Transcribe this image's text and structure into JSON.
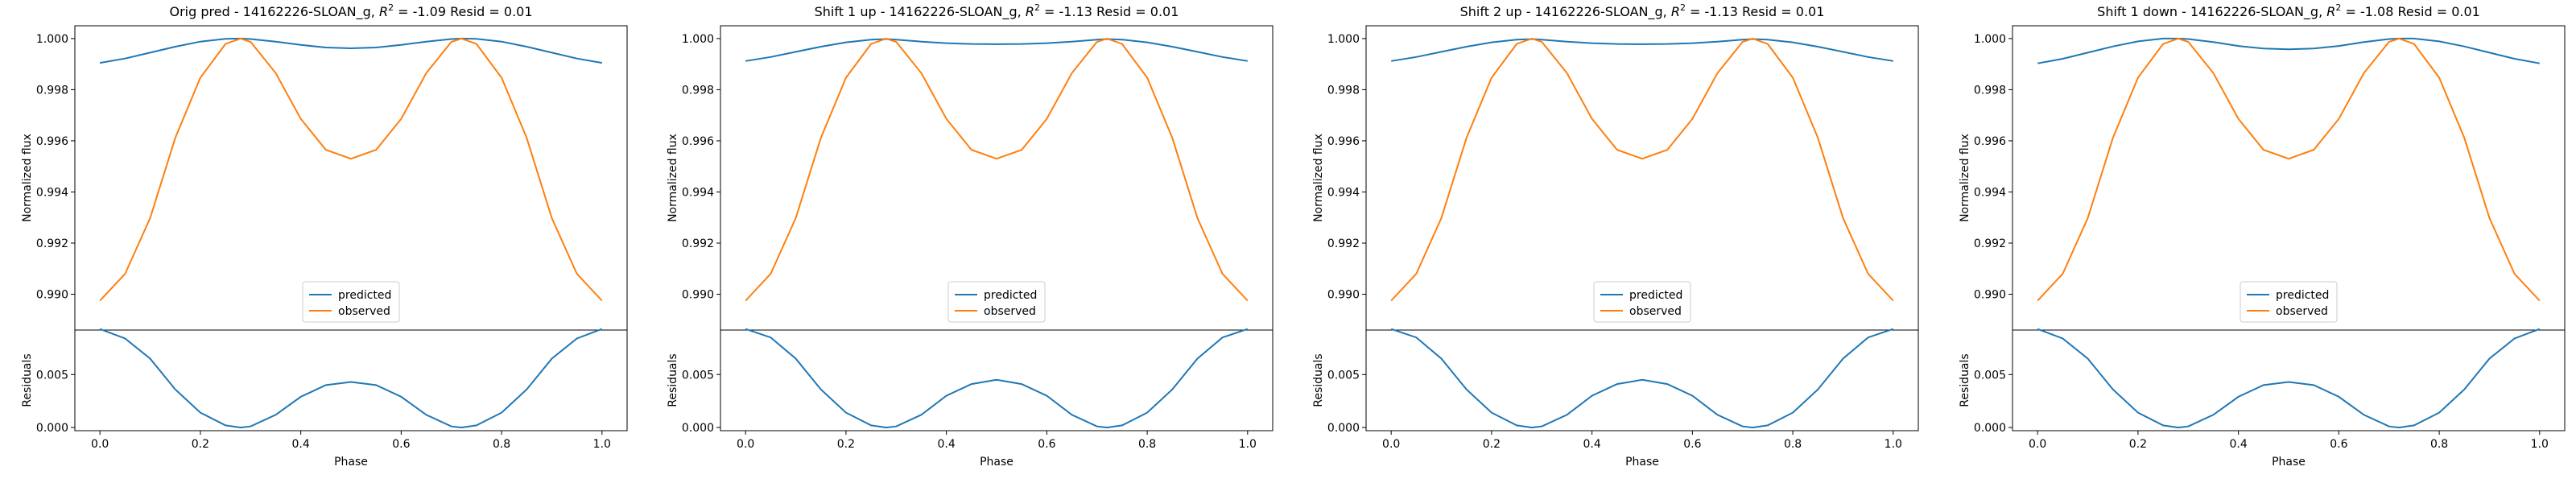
{
  "figure": {
    "x_label": "Phase",
    "flux_label": "Normalized flux",
    "resid_label": "Residuals",
    "legend": [
      "predicted",
      "observed"
    ],
    "colors": {
      "predicted": "#1f77b4",
      "observed": "#ff7f0e"
    }
  },
  "chart_data": [
    {
      "type": "line",
      "title_prefix": "Orig pred - 14162226-SLOAN_g, ",
      "r2_label": "R",
      "r2_sup": "2",
      "title_suffix": " = -1.09 Resid = 0.01",
      "xlabel": "Phase",
      "ylabel": "Normalized flux",
      "ylabel_resid": "Residuals",
      "xlim": [
        -0.05,
        1.05
      ],
      "ylim": [
        0.9886,
        1.0005
      ],
      "ylim_resid": [
        -0.0003,
        0.0092
      ],
      "x_ticks": [
        "0.0",
        "0.2",
        "0.4",
        "0.6",
        "0.8",
        "1.0"
      ],
      "y_ticks": [
        "0.990",
        "0.992",
        "0.994",
        "0.996",
        "0.998",
        "1.000"
      ],
      "resid_ticks": [
        "0.000",
        "0.005"
      ],
      "legend_position": "lower center",
      "x": [
        0,
        0.05,
        0.1,
        0.15,
        0.2,
        0.25,
        0.28,
        0.3,
        0.35,
        0.4,
        0.45,
        0.5,
        0.55,
        0.6,
        0.65,
        0.7,
        0.72,
        0.75,
        0.8,
        0.85,
        0.9,
        0.95,
        1.0
      ],
      "series": [
        {
          "name": "predicted",
          "values": [
            0.99905,
            0.99922,
            0.99945,
            0.99968,
            0.99988,
            0.99999,
            1.0,
            0.99998,
            0.99988,
            0.99975,
            0.99965,
            0.99962,
            0.99965,
            0.99975,
            0.99988,
            0.99998,
            1.0,
            0.99999,
            0.99988,
            0.99968,
            0.99945,
            0.99922,
            0.99905
          ]
        },
        {
          "name": "observed",
          "values": [
            0.98975,
            0.9908,
            0.99298,
            0.99611,
            0.99847,
            0.99979,
            1.0,
            0.99987,
            0.99865,
            0.99686,
            0.99565,
            0.9953,
            0.99565,
            0.99686,
            0.99865,
            0.99987,
            1.0,
            0.99979,
            0.99847,
            0.99611,
            0.99298,
            0.9908,
            0.98975
          ]
        }
      ],
      "residuals": [
        0.0093,
        0.0084,
        0.0065,
        0.0036,
        0.0014,
        0.0002,
        0.0,
        0.0001,
        0.0012,
        0.0029,
        0.004,
        0.0043,
        0.004,
        0.0029,
        0.0012,
        0.0001,
        0.0,
        0.0002,
        0.0014,
        0.0036,
        0.0065,
        0.0084,
        0.0093
      ]
    },
    {
      "type": "line",
      "title_prefix": "Shift 1 up - 14162226-SLOAN_g, ",
      "r2_label": "R",
      "r2_sup": "2",
      "title_suffix": " = -1.13 Resid = 0.01",
      "xlabel": "Phase",
      "ylabel": "Normalized flux",
      "ylabel_resid": "Residuals",
      "xlim": [
        -0.05,
        1.05
      ],
      "ylim": [
        0.9886,
        1.0005
      ],
      "ylim_resid": [
        -0.0003,
        0.0092
      ],
      "x_ticks": [
        "0.0",
        "0.2",
        "0.4",
        "0.6",
        "0.8",
        "1.0"
      ],
      "y_ticks": [
        "0.990",
        "0.992",
        "0.994",
        "0.996",
        "0.998",
        "1.000"
      ],
      "resid_ticks": [
        "0.000",
        "0.005"
      ],
      "legend_position": "lower center",
      "x": [
        0,
        0.05,
        0.1,
        0.15,
        0.2,
        0.25,
        0.28,
        0.3,
        0.35,
        0.4,
        0.45,
        0.5,
        0.55,
        0.6,
        0.65,
        0.7,
        0.72,
        0.75,
        0.8,
        0.85,
        0.9,
        0.95,
        1.0
      ],
      "series": [
        {
          "name": "predicted",
          "values": [
            0.99912,
            0.99928,
            0.99948,
            0.99968,
            0.99985,
            0.99996,
            0.99998,
            0.99996,
            0.99988,
            0.99982,
            0.99979,
            0.99978,
            0.99979,
            0.99982,
            0.99988,
            0.99996,
            0.99998,
            0.99996,
            0.99985,
            0.99968,
            0.99948,
            0.99928,
            0.99912
          ]
        },
        {
          "name": "observed",
          "values": [
            0.98975,
            0.9908,
            0.99298,
            0.99611,
            0.99847,
            0.99979,
            1.0,
            0.99987,
            0.99865,
            0.99686,
            0.99565,
            0.9953,
            0.99565,
            0.99686,
            0.99865,
            0.99987,
            1.0,
            0.99979,
            0.99847,
            0.99611,
            0.99298,
            0.9908,
            0.98975
          ]
        }
      ],
      "residuals": [
        0.0093,
        0.0085,
        0.0065,
        0.0036,
        0.0014,
        0.0002,
        0.0,
        0.0001,
        0.0012,
        0.003,
        0.0041,
        0.0045,
        0.0041,
        0.003,
        0.0012,
        0.0001,
        0.0,
        0.0002,
        0.0014,
        0.0036,
        0.0065,
        0.0085,
        0.0093
      ]
    },
    {
      "type": "line",
      "title_prefix": "Shift 2 up - 14162226-SLOAN_g, ",
      "r2_label": "R",
      "r2_sup": "2",
      "title_suffix": " = -1.13 Resid = 0.01",
      "xlabel": "Phase",
      "ylabel": "Normalized flux",
      "ylabel_resid": "Residuals",
      "xlim": [
        -0.05,
        1.05
      ],
      "ylim": [
        0.9886,
        1.0005
      ],
      "ylim_resid": [
        -0.0003,
        0.0092
      ],
      "x_ticks": [
        "0.0",
        "0.2",
        "0.4",
        "0.6",
        "0.8",
        "1.0"
      ],
      "y_ticks": [
        "0.990",
        "0.992",
        "0.994",
        "0.996",
        "0.998",
        "1.000"
      ],
      "resid_ticks": [
        "0.000",
        "0.005"
      ],
      "legend_position": "lower center",
      "x": [
        0,
        0.05,
        0.1,
        0.15,
        0.2,
        0.25,
        0.28,
        0.3,
        0.35,
        0.4,
        0.45,
        0.5,
        0.55,
        0.6,
        0.65,
        0.7,
        0.72,
        0.75,
        0.8,
        0.85,
        0.9,
        0.95,
        1.0
      ],
      "series": [
        {
          "name": "predicted",
          "values": [
            0.99912,
            0.99928,
            0.99948,
            0.99968,
            0.99985,
            0.99996,
            0.99998,
            0.99996,
            0.99988,
            0.99982,
            0.99979,
            0.99978,
            0.99979,
            0.99982,
            0.99988,
            0.99996,
            0.99998,
            0.99996,
            0.99985,
            0.99968,
            0.99948,
            0.99928,
            0.99912
          ]
        },
        {
          "name": "observed",
          "values": [
            0.98975,
            0.9908,
            0.99298,
            0.99611,
            0.99847,
            0.99979,
            1.0,
            0.99987,
            0.99865,
            0.99686,
            0.99565,
            0.9953,
            0.99565,
            0.99686,
            0.99865,
            0.99987,
            1.0,
            0.99979,
            0.99847,
            0.99611,
            0.99298,
            0.9908,
            0.98975
          ]
        }
      ],
      "residuals": [
        0.0093,
        0.0085,
        0.0065,
        0.0036,
        0.0014,
        0.0002,
        0.0,
        0.0001,
        0.0012,
        0.003,
        0.0041,
        0.0045,
        0.0041,
        0.003,
        0.0012,
        0.0001,
        0.0,
        0.0002,
        0.0014,
        0.0036,
        0.0065,
        0.0085,
        0.0093
      ]
    },
    {
      "type": "line",
      "title_prefix": "Shift 1 down - 14162226-SLOAN_g, ",
      "r2_label": "R",
      "r2_sup": "2",
      "title_suffix": " = -1.08 Resid = 0.01",
      "xlabel": "Phase",
      "ylabel": "Normalized flux",
      "ylabel_resid": "Residuals",
      "xlim": [
        -0.05,
        1.05
      ],
      "ylim": [
        0.9886,
        1.0005
      ],
      "ylim_resid": [
        -0.0003,
        0.0092
      ],
      "x_ticks": [
        "0.0",
        "0.2",
        "0.4",
        "0.6",
        "0.8",
        "1.0"
      ],
      "y_ticks": [
        "0.990",
        "0.992",
        "0.994",
        "0.996",
        "0.998",
        "1.000"
      ],
      "resid_ticks": [
        "0.000",
        "0.005"
      ],
      "legend_position": "lower center",
      "x": [
        0,
        0.05,
        0.1,
        0.15,
        0.2,
        0.25,
        0.28,
        0.3,
        0.35,
        0.4,
        0.45,
        0.5,
        0.55,
        0.6,
        0.65,
        0.7,
        0.72,
        0.75,
        0.8,
        0.85,
        0.9,
        0.95,
        1.0
      ],
      "series": [
        {
          "name": "predicted",
          "values": [
            0.99903,
            0.99921,
            0.99945,
            0.99969,
            0.99989,
            1.0,
            1.0,
            0.99998,
            0.99986,
            0.99971,
            0.99961,
            0.99958,
            0.99961,
            0.99971,
            0.99986,
            0.99998,
            1.0,
            1.0,
            0.99989,
            0.99969,
            0.99945,
            0.99921,
            0.99903
          ]
        },
        {
          "name": "observed",
          "values": [
            0.98975,
            0.9908,
            0.99298,
            0.99611,
            0.99847,
            0.99979,
            1.0,
            0.99987,
            0.99865,
            0.99686,
            0.99565,
            0.9953,
            0.99565,
            0.99686,
            0.99865,
            0.99987,
            1.0,
            0.99979,
            0.99847,
            0.99611,
            0.99298,
            0.9908,
            0.98975
          ]
        }
      ],
      "residuals": [
        0.0093,
        0.0084,
        0.0065,
        0.0036,
        0.0014,
        0.0002,
        0.0,
        0.0001,
        0.0012,
        0.0029,
        0.004,
        0.0043,
        0.004,
        0.0029,
        0.0012,
        0.0001,
        0.0,
        0.0002,
        0.0014,
        0.0036,
        0.0065,
        0.0084,
        0.0093
      ]
    }
  ]
}
